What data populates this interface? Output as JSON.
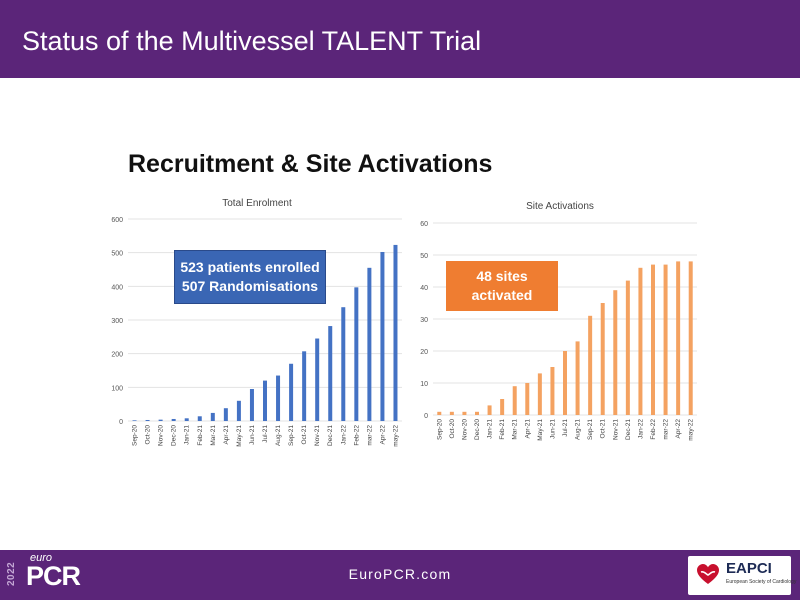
{
  "slide": {
    "title": "Status of the Multivessel TALENT Trial",
    "subheading": "Recruitment & Site Activations"
  },
  "callouts": {
    "enrolment_line1": "523 patients enrolled",
    "enrolment_line2": "507 Randomisations",
    "sites_line1": "48 sites",
    "sites_line2": "activated"
  },
  "footer": {
    "url": "EuroPCR.com",
    "logo_year": "2022",
    "logo_euro": "euro",
    "logo_pcr": "PCR",
    "partner_name": "EAPCI",
    "partner_subtitle": "European Society of Cardiology"
  },
  "colors": {
    "header_bg": "#5b2579",
    "enrolment_bar": "#4472c4",
    "sites_bar": "#f4a261",
    "enrolment_callout": "#3a66b4",
    "sites_callout": "#ef7d31"
  },
  "chart_data": [
    {
      "type": "bar",
      "title": "Total Enrolment",
      "xlabel": "",
      "ylabel": "",
      "ylim": [
        0,
        600
      ],
      "yticks": [
        0,
        100,
        200,
        300,
        400,
        500,
        600
      ],
      "grid": true,
      "categories": [
        "Sep-20",
        "Oct-20",
        "Nov-20",
        "Dec-20",
        "Jan-21",
        "Feb-21",
        "Mar-21",
        "Apr-21",
        "May-21",
        "Jun-21",
        "Jul-21",
        "Aug-21",
        "Sep-21",
        "Oct-21",
        "Nov-21",
        "Dec-21",
        "Jan-22",
        "Feb-22",
        "mar-22",
        "Apr-22",
        "may-22"
      ],
      "values": [
        2,
        3,
        4,
        6,
        8,
        14,
        24,
        38,
        60,
        95,
        120,
        135,
        170,
        207,
        245,
        282,
        338,
        397,
        455,
        502,
        523
      ]
    },
    {
      "type": "bar",
      "title": "Site Activations",
      "xlabel": "",
      "ylabel": "",
      "ylim": [
        0,
        60
      ],
      "yticks": [
        0,
        10,
        20,
        30,
        40,
        50,
        60
      ],
      "grid": true,
      "categories": [
        "Sep-20",
        "Oct-20",
        "Nov-20",
        "Dec-20",
        "Jan-21",
        "Feb-21",
        "Mar-21",
        "Apr-21",
        "May-21",
        "Jun-21",
        "Jul-21",
        "Aug-21",
        "Sep-21",
        "Oct-21",
        "Nov-21",
        "Dec-21",
        "Jan-22",
        "Feb-22",
        "mar-22",
        "Apr-22",
        "may-22"
      ],
      "values": [
        1,
        1,
        1,
        1,
        3,
        5,
        9,
        10,
        13,
        15,
        20,
        23,
        31,
        35,
        39,
        42,
        46,
        47,
        47,
        48,
        48
      ]
    }
  ]
}
